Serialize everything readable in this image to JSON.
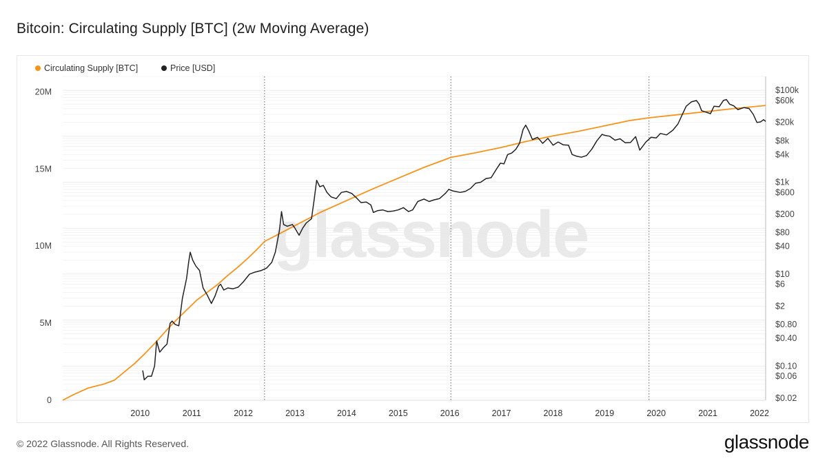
{
  "header": {
    "title": "Bitcoin: Circulating Supply [BTC] (2w Moving Average)"
  },
  "footer": {
    "copyright": "© 2022 Glassnode. All Rights Reserved.",
    "brand": "glassnode"
  },
  "watermark": "glassnode",
  "colors": {
    "supply": "#f7931a",
    "price": "#222222",
    "grid": "#ececec",
    "vline": "#666666"
  },
  "chart_data": {
    "type": "line",
    "title": "Bitcoin: Circulating Supply [BTC] (2w Moving Average)",
    "legend": {
      "placement": "top-left",
      "entries": [
        {
          "name": "Circulating Supply [BTC]",
          "color": "#f7931a"
        },
        {
          "name": "Price [USD]",
          "color": "#222222"
        }
      ]
    },
    "x_ticks": [
      "2010",
      "2011",
      "2012",
      "2013",
      "2014",
      "2015",
      "2016",
      "2017",
      "2018",
      "2019",
      "2020",
      "2021",
      "2022"
    ],
    "xlim": [
      2009.0,
      2022.62
    ],
    "y_left": {
      "ticks": [
        {
          "label": "0",
          "value": 0
        },
        {
          "label": "5M",
          "value": 5000000
        },
        {
          "label": "10M",
          "value": 10000000
        },
        {
          "label": "15M",
          "value": 15000000
        },
        {
          "label": "20M",
          "value": 20000000
        }
      ],
      "range": [
        0,
        21000000
      ]
    },
    "y_right": {
      "scale": "log",
      "range": [
        0.018,
        200000
      ],
      "ticks": [
        {
          "label": "$0.02",
          "value": 0.02
        },
        {
          "label": "$0.06",
          "value": 0.06
        },
        {
          "label": "$0.10",
          "value": 0.1
        },
        {
          "label": "$0.40",
          "value": 0.4
        },
        {
          "label": "$0.80",
          "value": 0.8
        },
        {
          "label": "$2",
          "value": 2
        },
        {
          "label": "$6",
          "value": 6
        },
        {
          "label": "$10",
          "value": 10
        },
        {
          "label": "$40",
          "value": 40
        },
        {
          "label": "$80",
          "value": 80
        },
        {
          "label": "$200",
          "value": 200
        },
        {
          "label": "$600",
          "value": 600
        },
        {
          "label": "$1k",
          "value": 1000
        },
        {
          "label": "$4k",
          "value": 4000
        },
        {
          "label": "$8k",
          "value": 8000
        },
        {
          "label": "$20k",
          "value": 20000
        },
        {
          "label": "$60k",
          "value": 60000
        },
        {
          "label": "$100k",
          "value": 100000
        }
      ]
    },
    "halvings": [
      2012.91,
      2016.52,
      2020.36
    ],
    "series": [
      {
        "name": "Circulating Supply [BTC]",
        "axis": "left",
        "points": [
          [
            2009.0,
            0
          ],
          [
            2009.2,
            350000
          ],
          [
            2009.5,
            800000
          ],
          [
            2009.8,
            1050000
          ],
          [
            2010.0,
            1300000
          ],
          [
            2010.2,
            1850000
          ],
          [
            2010.4,
            2400000
          ],
          [
            2010.6,
            3050000
          ],
          [
            2010.8,
            3750000
          ],
          [
            2011.0,
            4500000
          ],
          [
            2011.2,
            5200000
          ],
          [
            2011.4,
            5850000
          ],
          [
            2011.6,
            6500000
          ],
          [
            2011.8,
            7000000
          ],
          [
            2012.0,
            7500000
          ],
          [
            2012.2,
            8100000
          ],
          [
            2012.4,
            8650000
          ],
          [
            2012.6,
            9250000
          ],
          [
            2012.8,
            9900000
          ],
          [
            2012.91,
            10300000
          ],
          [
            2013.2,
            10800000
          ],
          [
            2013.6,
            11500000
          ],
          [
            2014.0,
            12200000
          ],
          [
            2014.5,
            12950000
          ],
          [
            2015.0,
            13700000
          ],
          [
            2015.5,
            14400000
          ],
          [
            2016.0,
            15100000
          ],
          [
            2016.52,
            15750000
          ],
          [
            2017.0,
            16050000
          ],
          [
            2017.5,
            16400000
          ],
          [
            2018.0,
            16800000
          ],
          [
            2018.5,
            17150000
          ],
          [
            2019.0,
            17450000
          ],
          [
            2019.5,
            17800000
          ],
          [
            2020.0,
            18150000
          ],
          [
            2020.36,
            18320000
          ],
          [
            2021.0,
            18550000
          ],
          [
            2021.5,
            18730000
          ],
          [
            2022.0,
            18920000
          ],
          [
            2022.62,
            19120000
          ]
        ]
      },
      {
        "name": "Price [USD]",
        "axis": "right",
        "points": [
          [
            2010.55,
            0.08
          ],
          [
            2010.58,
            0.05
          ],
          [
            2010.65,
            0.06
          ],
          [
            2010.72,
            0.06
          ],
          [
            2010.78,
            0.1
          ],
          [
            2010.82,
            0.35
          ],
          [
            2010.88,
            0.2
          ],
          [
            2010.95,
            0.25
          ],
          [
            2011.02,
            0.3
          ],
          [
            2011.08,
            0.85
          ],
          [
            2011.12,
            0.95
          ],
          [
            2011.18,
            0.8
          ],
          [
            2011.25,
            0.75
          ],
          [
            2011.32,
            3.0
          ],
          [
            2011.4,
            8.0
          ],
          [
            2011.44,
            18
          ],
          [
            2011.47,
            30
          ],
          [
            2011.52,
            20
          ],
          [
            2011.58,
            15
          ],
          [
            2011.65,
            12
          ],
          [
            2011.72,
            5
          ],
          [
            2011.8,
            3.5
          ],
          [
            2011.88,
            2.3
          ],
          [
            2011.95,
            3.3
          ],
          [
            2012.02,
            5.5
          ],
          [
            2012.06,
            6.0
          ],
          [
            2012.12,
            4.5
          ],
          [
            2012.2,
            5.0
          ],
          [
            2012.3,
            4.8
          ],
          [
            2012.4,
            5.2
          ],
          [
            2012.5,
            6.8
          ],
          [
            2012.62,
            10
          ],
          [
            2012.72,
            11
          ],
          [
            2012.85,
            12
          ],
          [
            2012.95,
            13.5
          ],
          [
            2013.05,
            18
          ],
          [
            2013.12,
            30
          ],
          [
            2013.2,
            90
          ],
          [
            2013.24,
            230
          ],
          [
            2013.28,
            120
          ],
          [
            2013.35,
            110
          ],
          [
            2013.45,
            120
          ],
          [
            2013.5,
            100
          ],
          [
            2013.58,
            70
          ],
          [
            2013.65,
            100
          ],
          [
            2013.72,
            130
          ],
          [
            2013.82,
            160
          ],
          [
            2013.87,
            400
          ],
          [
            2013.92,
            1100
          ],
          [
            2013.98,
            800
          ],
          [
            2014.05,
            850
          ],
          [
            2014.12,
            600
          ],
          [
            2014.2,
            480
          ],
          [
            2014.3,
            440
          ],
          [
            2014.4,
            600
          ],
          [
            2014.5,
            630
          ],
          [
            2014.6,
            570
          ],
          [
            2014.68,
            470
          ],
          [
            2014.78,
            360
          ],
          [
            2014.88,
            370
          ],
          [
            2014.97,
            320
          ],
          [
            2015.02,
            220
          ],
          [
            2015.1,
            240
          ],
          [
            2015.2,
            250
          ],
          [
            2015.3,
            230
          ],
          [
            2015.4,
            235
          ],
          [
            2015.5,
            250
          ],
          [
            2015.6,
            280
          ],
          [
            2015.7,
            230
          ],
          [
            2015.78,
            250
          ],
          [
            2015.88,
            380
          ],
          [
            2016.0,
            430
          ],
          [
            2016.1,
            380
          ],
          [
            2016.2,
            415
          ],
          [
            2016.3,
            440
          ],
          [
            2016.42,
            580
          ],
          [
            2016.48,
            700
          ],
          [
            2016.55,
            650
          ],
          [
            2016.7,
            600
          ],
          [
            2016.8,
            630
          ],
          [
            2016.9,
            730
          ],
          [
            2017.0,
            950
          ],
          [
            2017.1,
            1000
          ],
          [
            2017.2,
            1200
          ],
          [
            2017.3,
            1250
          ],
          [
            2017.4,
            1900
          ],
          [
            2017.48,
            2600
          ],
          [
            2017.55,
            2500
          ],
          [
            2017.62,
            4000
          ],
          [
            2017.7,
            4300
          ],
          [
            2017.78,
            5200
          ],
          [
            2017.85,
            7000
          ],
          [
            2017.92,
            14000
          ],
          [
            2017.97,
            17500
          ],
          [
            2018.03,
            13000
          ],
          [
            2018.1,
            8500
          ],
          [
            2018.2,
            9500
          ],
          [
            2018.3,
            7000
          ],
          [
            2018.4,
            9000
          ],
          [
            2018.5,
            6400
          ],
          [
            2018.6,
            7500
          ],
          [
            2018.7,
            6500
          ],
          [
            2018.8,
            6400
          ],
          [
            2018.87,
            4000
          ],
          [
            2018.95,
            3700
          ],
          [
            2019.05,
            3500
          ],
          [
            2019.15,
            3800
          ],
          [
            2019.25,
            5200
          ],
          [
            2019.35,
            8000
          ],
          [
            2019.45,
            11000
          ],
          [
            2019.5,
            10500
          ],
          [
            2019.6,
            10000
          ],
          [
            2019.7,
            8200
          ],
          [
            2019.8,
            8800
          ],
          [
            2019.9,
            7200
          ],
          [
            2020.0,
            7300
          ],
          [
            2020.1,
            9800
          ],
          [
            2020.18,
            5000
          ],
          [
            2020.3,
            7500
          ],
          [
            2020.4,
            9500
          ],
          [
            2020.5,
            9200
          ],
          [
            2020.58,
            11500
          ],
          [
            2020.7,
            10700
          ],
          [
            2020.82,
            13500
          ],
          [
            2020.92,
            18500
          ],
          [
            2021.0,
            29000
          ],
          [
            2021.08,
            45000
          ],
          [
            2021.18,
            56000
          ],
          [
            2021.28,
            60000
          ],
          [
            2021.33,
            50000
          ],
          [
            2021.38,
            36000
          ],
          [
            2021.48,
            33000
          ],
          [
            2021.55,
            31000
          ],
          [
            2021.62,
            45000
          ],
          [
            2021.72,
            44000
          ],
          [
            2021.8,
            60000
          ],
          [
            2021.86,
            63000
          ],
          [
            2021.92,
            50000
          ],
          [
            2022.0,
            46000
          ],
          [
            2022.08,
            38000
          ],
          [
            2022.2,
            42000
          ],
          [
            2022.3,
            40000
          ],
          [
            2022.38,
            30000
          ],
          [
            2022.45,
            20000
          ],
          [
            2022.52,
            20500
          ],
          [
            2022.58,
            23000
          ],
          [
            2022.62,
            21000
          ]
        ]
      }
    ]
  }
}
